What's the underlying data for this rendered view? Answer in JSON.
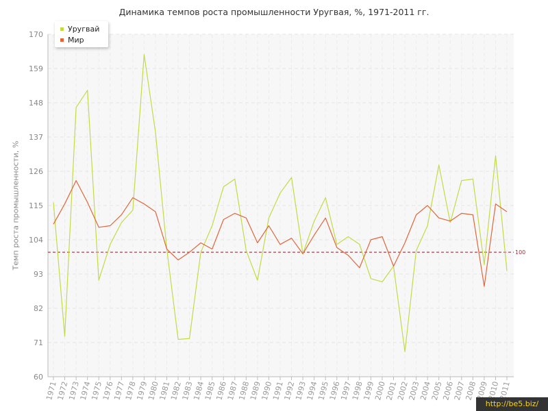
{
  "title": "Динамика темпов роста промышленности Уругвая, %, 1971-2011 гг.",
  "watermark": "http://be5.biz/",
  "colors": {
    "uruguay": "#c2db45",
    "world": "#e0663a",
    "ref": "#a03040",
    "grid": "#e6e6e6",
    "plot_bg": "#f7f7f7"
  },
  "chart_data": {
    "type": "line",
    "title": "Динамика темпов роста промышленности Уругвая, %, 1971-2011 гг.",
    "xlabel": "",
    "ylabel": "Темп роста промышленности, %",
    "ylim": [
      60,
      170
    ],
    "yticks": [
      60,
      71,
      82,
      93,
      104,
      115,
      126,
      137,
      148,
      159,
      170
    ],
    "x": [
      "1971",
      "1972",
      "1973",
      "1974",
      "1975",
      "1976",
      "1977",
      "1978",
      "1979",
      "1980",
      "1981",
      "1982",
      "1983",
      "1984",
      "1985",
      "1986",
      "1987",
      "1988",
      "1989",
      "1990",
      "1991",
      "1992",
      "1993",
      "1994",
      "1995",
      "1996",
      "1997",
      "1998",
      "1999",
      "2000",
      "2001",
      "2002",
      "2003",
      "2004",
      "2005",
      "2006",
      "2007",
      "2008",
      "2009",
      "2010",
      "2011"
    ],
    "series": [
      {
        "name": "Уругвай",
        "values": [
          116,
          73,
          146.5,
          152,
          91,
          102.5,
          109.5,
          113.5,
          163.5,
          138.5,
          101,
          72,
          72.3,
          100,
          108.5,
          121,
          123.5,
          100.5,
          91,
          111,
          119,
          124,
          99.5,
          110,
          117.5,
          102.5,
          105,
          102.5,
          91.5,
          90.5,
          95.5,
          68,
          100.5,
          108.5,
          128,
          109.5,
          123,
          123.5,
          96,
          131,
          94
        ]
      },
      {
        "name": "Мир",
        "values": [
          109,
          115.5,
          123,
          116,
          108,
          108.5,
          112,
          117.5,
          115.5,
          113,
          101,
          97.5,
          100,
          103,
          101,
          110.5,
          112.5,
          111,
          103,
          108.5,
          102.5,
          104.5,
          99.5,
          105.5,
          111,
          101.5,
          99,
          95,
          104,
          105,
          95.5,
          103,
          112,
          115,
          111,
          110,
          112.5,
          112,
          89,
          115.5,
          113
        ]
      }
    ],
    "reference_line": {
      "value": 100,
      "label": "100"
    },
    "legend": {
      "position": "top-left"
    },
    "grid": true
  }
}
